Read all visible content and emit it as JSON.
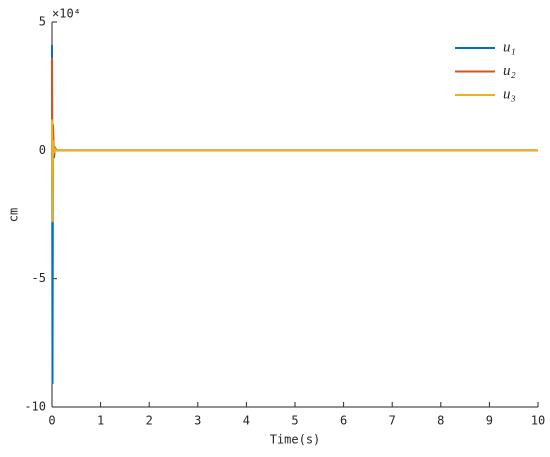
{
  "chart_data": {
    "type": "line",
    "x_label": "Time(s)",
    "y_label": "cm",
    "y_exponent": "×10⁴",
    "x": [
      0,
      0.01,
      0.02,
      0.04,
      0.06,
      0.1,
      0.2,
      1,
      10
    ],
    "series": [
      {
        "name": "u₁",
        "color": "#0072bd",
        "values": [
          4.1,
          -9.1,
          0.5,
          -0.3,
          0.1,
          0,
          0,
          0,
          0
        ]
      },
      {
        "name": "u₂",
        "color": "#d95319",
        "values": [
          3.6,
          -2.0,
          1.0,
          -0.2,
          0.1,
          0,
          0,
          0,
          0
        ]
      },
      {
        "name": "u₃",
        "color": "#edb120",
        "values": [
          1.2,
          -2.8,
          0.4,
          -0.1,
          0.05,
          0,
          0,
          0,
          0
        ]
      }
    ],
    "xlim": [
      0,
      10
    ],
    "xticks": [
      0,
      1,
      2,
      3,
      4,
      5,
      6,
      7,
      8,
      9,
      10
    ],
    "ylim": [
      -10,
      5
    ],
    "yticks": [
      -10,
      -5,
      0,
      5
    ],
    "legend": "top-right"
  }
}
